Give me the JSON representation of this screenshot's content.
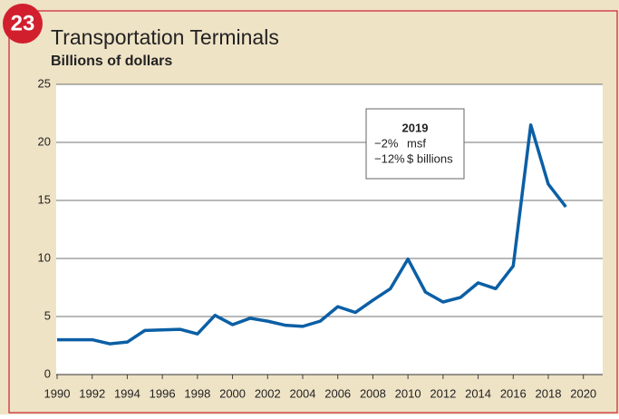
{
  "chart_data": {
    "type": "line",
    "badge": "23",
    "title": "Transportation Terminals",
    "subtitle": "Billions of dollars",
    "x": [
      1990,
      1991,
      1992,
      1993,
      1994,
      1995,
      1996,
      1997,
      1998,
      1999,
      2000,
      2001,
      2002,
      2003,
      2004,
      2005,
      2006,
      2007,
      2008,
      2009,
      2010,
      2011,
      2012,
      2013,
      2014,
      2015,
      2016,
      2017,
      2018,
      2019
    ],
    "series": [
      {
        "name": "Transportation Terminals",
        "color": "#0b5fa5",
        "values": [
          3.0,
          3.0,
          3.0,
          2.65,
          2.8,
          3.8,
          3.85,
          3.9,
          3.5,
          5.1,
          4.3,
          4.85,
          4.6,
          4.25,
          4.15,
          4.6,
          5.85,
          5.35,
          6.4,
          7.4,
          9.95,
          7.1,
          6.25,
          6.65,
          7.9,
          7.4,
          9.35,
          21.5,
          16.4,
          14.45
        ]
      }
    ],
    "xlim": [
      1990,
      2021.1
    ],
    "xticks": [
      1990,
      1992,
      1994,
      1996,
      1998,
      2000,
      2002,
      2004,
      2006,
      2008,
      2010,
      2012,
      2014,
      2016,
      2018,
      2020
    ],
    "ylim": [
      0,
      25
    ],
    "yticks": [
      0,
      5,
      10,
      15,
      20,
      25
    ],
    "grid": true,
    "annotation": {
      "title": "2019",
      "lines": [
        {
          "change": "−2%",
          "label": "msf"
        },
        {
          "change": "−12%",
          "label": "$ billions"
        }
      ]
    }
  }
}
